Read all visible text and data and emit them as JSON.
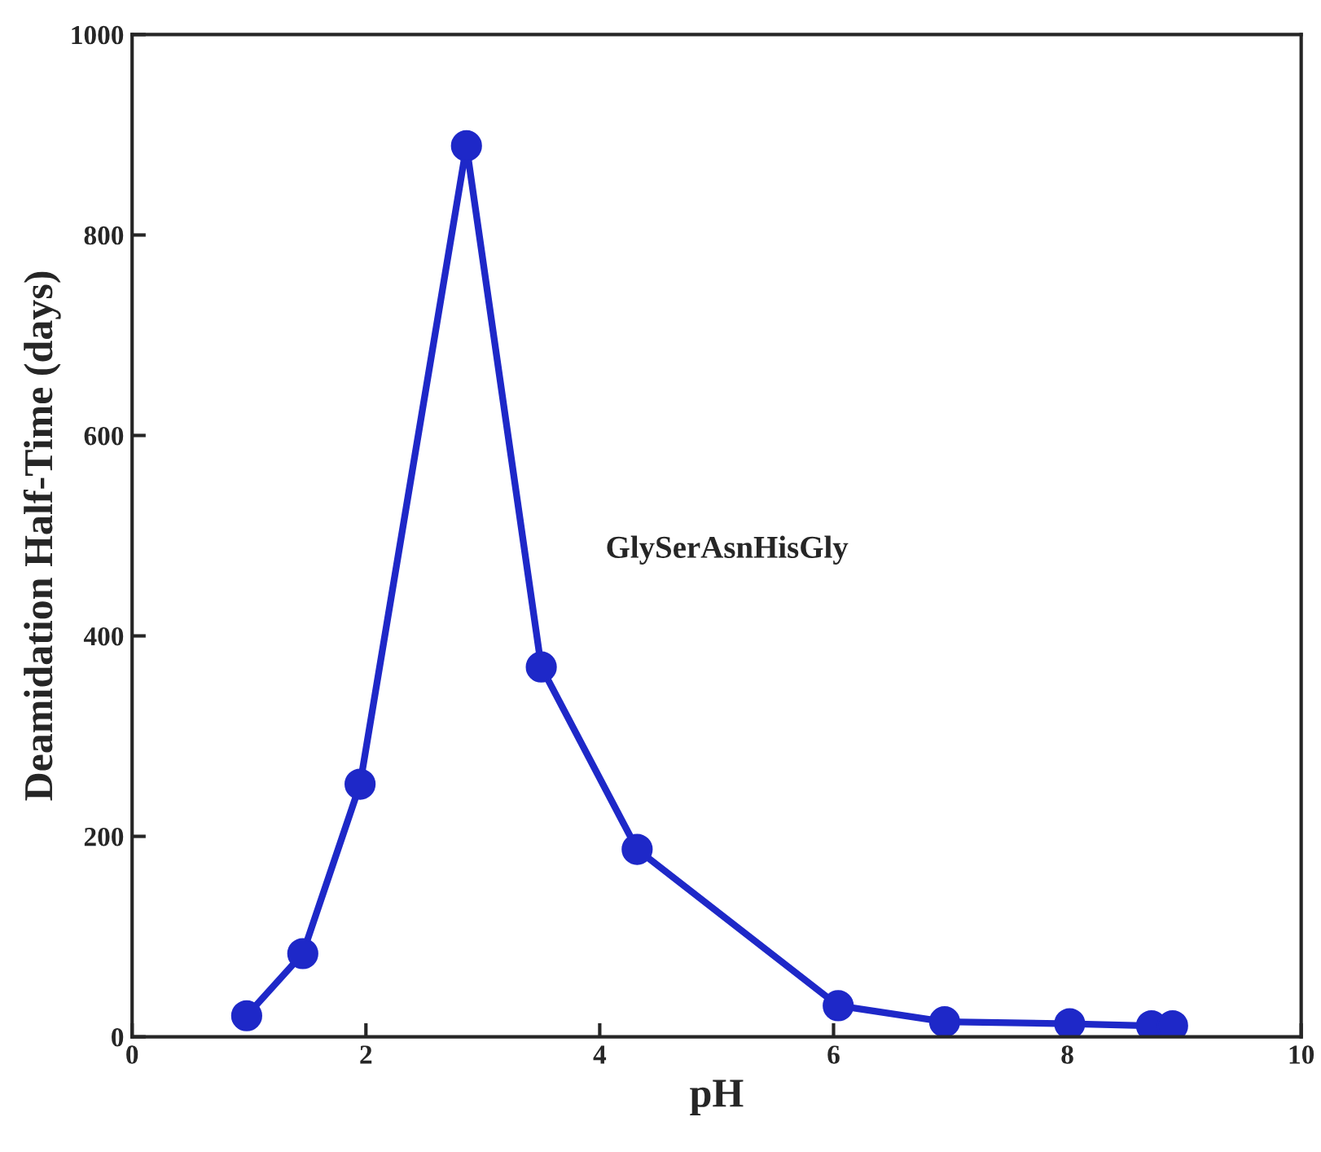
{
  "chart_data": {
    "type": "line",
    "xlabel": "pH",
    "ylabel": "Deamidation Half-Time (days)",
    "annotations": [
      "GlySerAsnHisGly"
    ],
    "series": [
      {
        "color": "#1e28c8",
        "x": [
          0.98,
          1.46,
          1.95,
          2.86,
          3.5,
          4.32,
          6.04,
          6.95,
          8.02,
          8.72,
          8.9
        ],
        "values": [
          21,
          83,
          252,
          889,
          369,
          187,
          31,
          15,
          13,
          11,
          11
        ]
      }
    ],
    "xlim": [
      0,
      10
    ],
    "xticks": [
      0,
      2,
      4,
      6,
      8,
      10
    ],
    "ylim": [
      0,
      1000
    ],
    "yticks": [
      0,
      200,
      400,
      600,
      800,
      1000
    ],
    "marker": "circle",
    "line_style": "solid",
    "grid": false,
    "legend": false
  }
}
